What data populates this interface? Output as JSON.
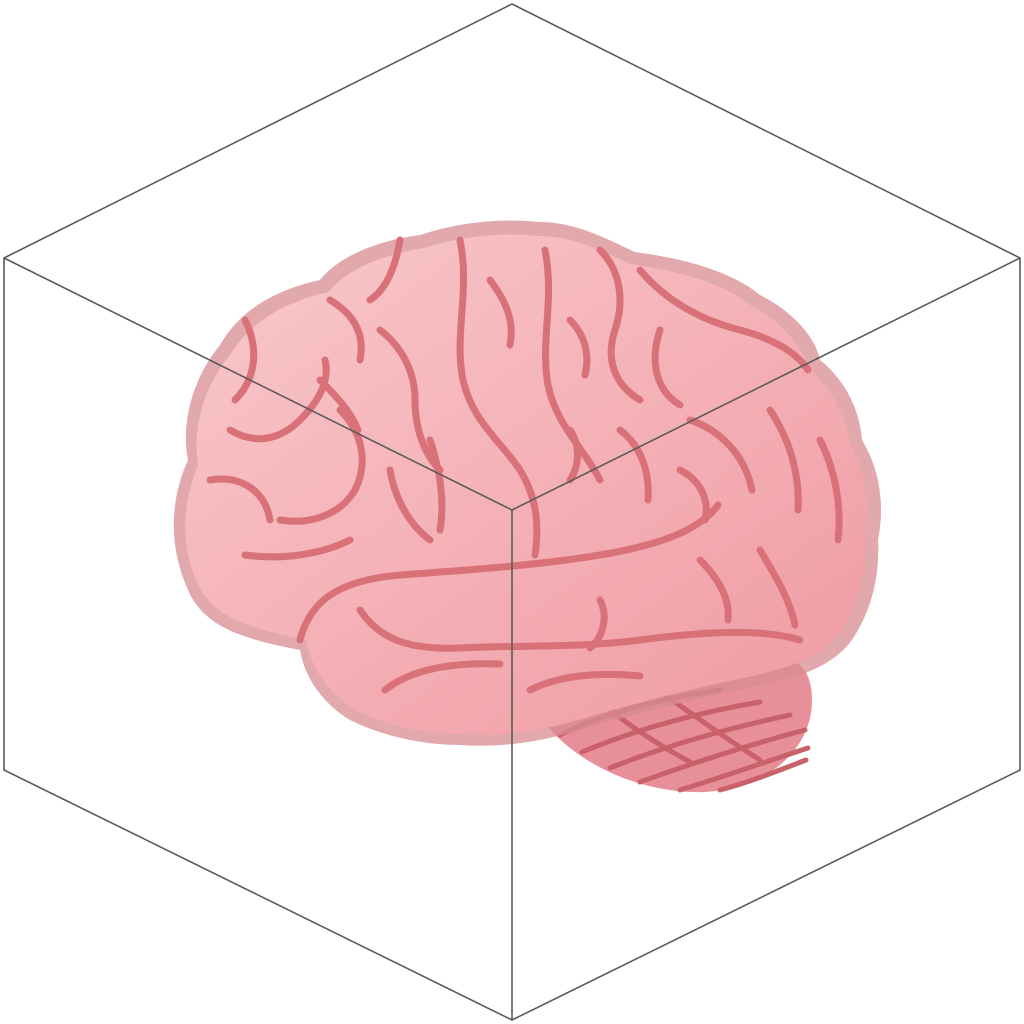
{
  "illustration": {
    "subject": "brain-in-cube",
    "colors": {
      "background": "#ffffff",
      "cube_line": "#5a5a5a",
      "brain_fill_light": "#f9c9cc",
      "brain_fill_dark": "#ef9aa1",
      "brain_rim": "#d88c92",
      "gyri_stroke": "#d97179",
      "cerebellum_fill": "#e89099",
      "cerebellum_stroke": "#c9616b"
    }
  }
}
